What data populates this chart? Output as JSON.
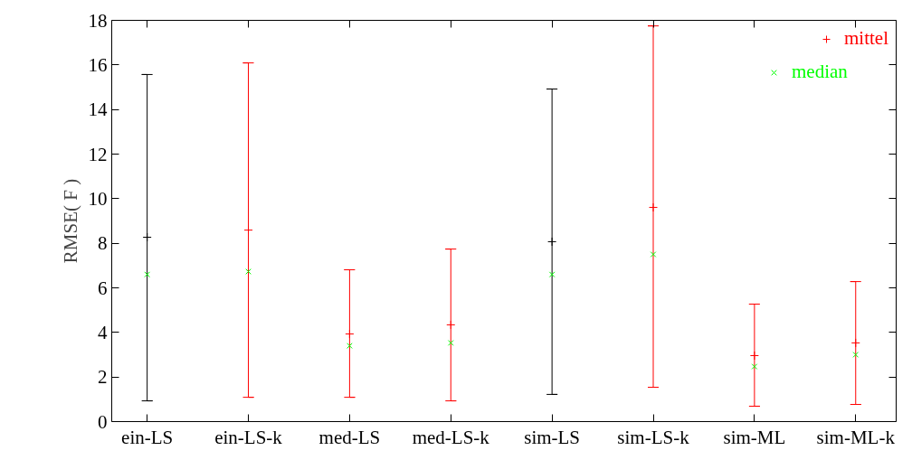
{
  "chart_data": {
    "type": "scatter",
    "ylabel": "RMSE( F )",
    "categories": [
      "ein-LS",
      "ein-LS-k",
      "med-LS",
      "med-LS-k",
      "sim-LS",
      "sim-LS-k",
      "sim-ML",
      "sim-ML-k"
    ],
    "ylim": [
      0,
      18
    ],
    "yticks": [
      0,
      2,
      4,
      6,
      8,
      10,
      12,
      14,
      16,
      18
    ],
    "grid": false,
    "legend": "top right",
    "series": [
      {
        "name": "mittel",
        "color": "#ff0000",
        "marker": "cross",
        "colors": [
          "#000000",
          "#ff0000",
          "#ff0000",
          "#ff0000",
          "#000000",
          "#ff0000",
          "#ff0000",
          "#ff0000"
        ],
        "values": [
          8.27,
          8.59,
          3.93,
          4.34,
          8.07,
          9.61,
          2.96,
          3.53
        ],
        "errors": [
          [
            0.93,
            15.57
          ],
          [
            1.09,
            16.09
          ],
          [
            1.09,
            6.81
          ],
          [
            0.93,
            7.74
          ],
          [
            1.22,
            14.92
          ],
          [
            1.54,
            17.75
          ],
          [
            0.69,
            5.27
          ],
          [
            0.77,
            6.28
          ]
        ]
      },
      {
        "name": "median",
        "color": "#00ff00",
        "marker": "x",
        "values": [
          6.6,
          6.73,
          3.4,
          3.53,
          6.6,
          7.5,
          2.47,
          3.0
        ]
      }
    ]
  }
}
